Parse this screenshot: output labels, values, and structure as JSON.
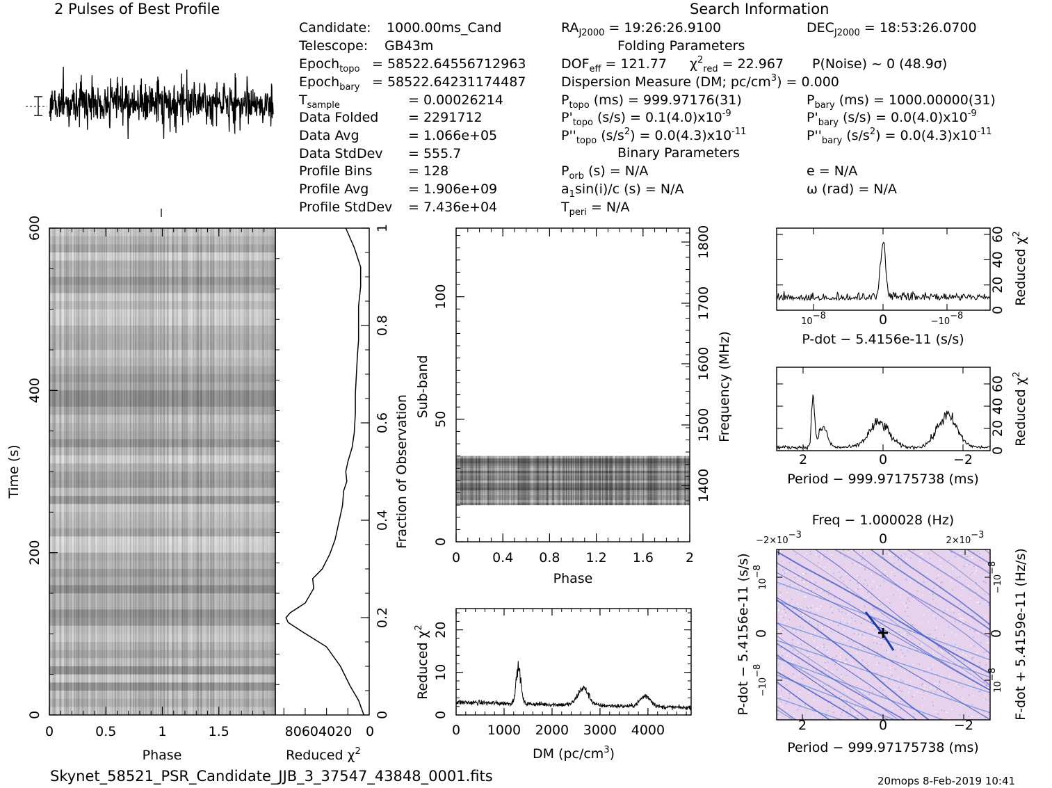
{
  "header": {
    "profile_title": "2 Pulses of Best Profile",
    "search_title": "Search Information",
    "folding_title": "Folding Parameters",
    "binary_title": "Binary Parameters"
  },
  "info_left": [
    {
      "label": "Candidate:",
      "value": "1000.00ms_Cand"
    },
    {
      "label": "Telescope:",
      "value": "GB43m"
    },
    {
      "label": "Epoch",
      "sub": "topo",
      "value": "= 58522.64556712963"
    },
    {
      "label": "Epoch",
      "sub": "bary",
      "value": "= 58522.64231174487"
    },
    {
      "label": "T",
      "sub": "sample",
      "value": "=   0.00026214"
    },
    {
      "label": "Data Folded",
      "value": "=   2291712"
    },
    {
      "label": "Data Avg",
      "value": "=   1.066e+05"
    },
    {
      "label": "Data StdDev",
      "value": "=   555.7"
    },
    {
      "label": "Profile Bins",
      "value": "=   128"
    },
    {
      "label": "Profile Avg",
      "value": "=   1.906e+09"
    },
    {
      "label": "Profile StdDev",
      "value": "=   7.436e+04"
    }
  ],
  "info_search": {
    "ra": {
      "label": "RA",
      "sub": "J2000",
      "value": "= 19:26:26.9100"
    },
    "dec": {
      "label": "DEC",
      "sub": "J2000",
      "value": "= 18:53:26.0700"
    },
    "dof": {
      "label": "DOF",
      "sub": "eff",
      "value": "= 121.77"
    },
    "chi": {
      "label": "χ",
      "sup": "2",
      "sub": "red",
      "value": "= 22.967"
    },
    "pnoise": "P(Noise) ~ 0    (48.9σ)",
    "dm_line_a": "Dispersion Measure (DM; pc/cm",
    "dm_line_sup": "3",
    "dm_line_b": ") = 0.000",
    "ptopo": {
      "label": "P",
      "sub": "topo",
      "value": " (ms) =  999.97176(31)"
    },
    "pbary": {
      "label": "P",
      "sub": "bary",
      "value": " (ms) =  1000.00000(31)"
    },
    "pdtopo": {
      "label": "P'",
      "sub": "topo",
      "value": " (s/s) =  0.1(4.0)x10",
      "exp": "-9"
    },
    "pdbary": {
      "label": "P'",
      "sub": "bary",
      "value": " (s/s) = 0.0(4.0)x10",
      "exp": "-9"
    },
    "pddtopo": {
      "label": "P''",
      "sub": "topo",
      "value": " (s/s",
      "sup": "2",
      "value2": ") = 0.0(4.3)x10",
      "exp": "-11"
    },
    "pddbary": {
      "label": "P''",
      "sub": "bary",
      "value": " (s/s",
      "sup": "2",
      "value2": ") = 0.0(4.3)x10",
      "exp": "-11"
    },
    "porb": {
      "label": "P",
      "sub": "orb",
      "value": " (s) = N/A"
    },
    "ecc": "e = N/A",
    "asini": {
      "label": "a",
      "sub": "1",
      "value": "sin(i)/c (s) = N/A"
    },
    "omega": "ω (rad) = N/A",
    "tperi": {
      "label": "T",
      "sub": "peri",
      "value": " = N/A"
    }
  },
  "footer": {
    "filename": "Skynet_58521_PSR_Candidate_JJB_3_37547_43848_0001.fits",
    "stamp": "20mops   8-Feb-2019 10:41"
  },
  "chart_data": [
    {
      "type": "line",
      "name": "profile",
      "xlabel": "",
      "ylabel": "",
      "xlim": [
        0,
        2
      ],
      "note_bins": 128
    },
    {
      "type": "heatmap",
      "name": "time-phase",
      "xlabel": "Phase",
      "ylabel": "Time (s)",
      "xlim": [
        0,
        2
      ],
      "ylim": [
        0,
        600
      ],
      "xticks": [
        "0",
        "0.5",
        "1",
        "1.5"
      ],
      "yticks": [
        "0",
        "200",
        "400",
        "600"
      ]
    },
    {
      "type": "line",
      "name": "time-chi2",
      "xlabel": "Reduced χ",
      "xlabel_sup": "2",
      "xticks": [
        "80604020",
        "0"
      ],
      "y2label": "Fraction of Observation",
      "y2ticks": [
        "0",
        "0.2",
        "0.4",
        "0.6",
        "0.8",
        "1"
      ],
      "points": [
        [
          0.0,
          5
        ],
        [
          0.03,
          10
        ],
        [
          0.06,
          18
        ],
        [
          0.1,
          27
        ],
        [
          0.14,
          40
        ],
        [
          0.17,
          62
        ],
        [
          0.19,
          76
        ],
        [
          0.2,
          78
        ],
        [
          0.21,
          74
        ],
        [
          0.23,
          60
        ],
        [
          0.26,
          52
        ],
        [
          0.28,
          53
        ],
        [
          0.3,
          44
        ],
        [
          0.33,
          37
        ],
        [
          0.36,
          32
        ],
        [
          0.4,
          28
        ],
        [
          0.43,
          25
        ],
        [
          0.46,
          24
        ],
        [
          0.48,
          21
        ],
        [
          0.5,
          22
        ],
        [
          0.52,
          20
        ],
        [
          0.55,
          16
        ],
        [
          0.58,
          14
        ],
        [
          0.62,
          13
        ],
        [
          0.66,
          13
        ],
        [
          0.7,
          12
        ],
        [
          0.74,
          11
        ],
        [
          0.77,
          10
        ],
        [
          0.8,
          10
        ],
        [
          0.84,
          10
        ],
        [
          0.88,
          8
        ],
        [
          0.92,
          8
        ],
        [
          0.96,
          14
        ],
        [
          1.0,
          22
        ]
      ]
    },
    {
      "type": "heatmap",
      "name": "subband-phase",
      "xlabel": "Phase",
      "ylabel": "Sub-band",
      "y2label": "Frequency (MHz)",
      "xlim": [
        0,
        2
      ],
      "ylim": [
        0,
        128
      ],
      "xticks": [
        "0",
        "0.4",
        "0.8",
        "1.2",
        "1.6",
        "2"
      ],
      "yticks": [
        "0",
        "50",
        "100"
      ],
      "y2ticks": [
        "1400",
        "1500",
        "1600",
        "1700",
        "1800"
      ],
      "filled_subbands": [
        15,
        35
      ]
    },
    {
      "type": "line",
      "name": "dm-chi2",
      "xlabel": "DM (pc/cm",
      "xlabel_sup": "3",
      "xlabel_end": ")",
      "ylabel": "Reduced χ",
      "ylabel_sup": "2",
      "xlim": [
        0,
        4900
      ],
      "ylim": [
        0,
        25
      ],
      "xticks": [
        "0",
        "1000",
        "2000",
        "3000",
        "4000"
      ],
      "yticks": [
        "0",
        "10",
        "20"
      ],
      "peaks": [
        {
          "x": 1300,
          "y": 11
        },
        {
          "x": 2650,
          "y": 6.5
        },
        {
          "x": 3950,
          "y": 5
        }
      ]
    },
    {
      "type": "line",
      "name": "pdot-chi2",
      "xlabel": "P-dot − 5.4156e-11 (s/s)",
      "y2label": "Reduced χ",
      "y2label_sup": "2",
      "xticks": [
        "10",
        "0",
        "−10"
      ],
      "xticks_exp": "−8",
      "y2ticks": [
        "0",
        "20",
        "40",
        "60"
      ],
      "ylim": [
        0,
        65
      ],
      "peak": {
        "x": 0,
        "y": 52
      }
    },
    {
      "type": "line",
      "name": "period-chi2",
      "xlabel": "Period − 999.97175738 (ms)",
      "y2label": "Reduced χ",
      "y2label_sup": "2",
      "xticks": [
        "2",
        "0",
        "−2"
      ],
      "y2ticks": [
        "0",
        "20",
        "40",
        "60"
      ],
      "ylim": [
        0,
        75
      ],
      "peaks": [
        {
          "x": 1.7,
          "y": 64
        },
        {
          "x": 0,
          "y": 26
        },
        {
          "x": -1.6,
          "y": 40
        }
      ]
    },
    {
      "type": "heatmap",
      "name": "period-pdot",
      "title": "Freq − 1.000028 (Hz)",
      "xlabel": "Period − 999.97175738 (ms)",
      "ylabel": "P-dot − 5.4156e-11 (s/s)",
      "y2label": "F-dot + 5.4159e-11 (Hz/s)",
      "xticks": [
        "2",
        "0",
        "−2"
      ],
      "topticks": [
        "−2×10",
        "0",
        "2×10"
      ],
      "topticks_exp": "−3",
      "yticks": [
        "10",
        "0",
        "−10"
      ],
      "yticks_exp": "−8",
      "colors": {
        "bg": "#e6d2ec",
        "line": "#3b57c8",
        "marker": "#000000"
      }
    }
  ]
}
